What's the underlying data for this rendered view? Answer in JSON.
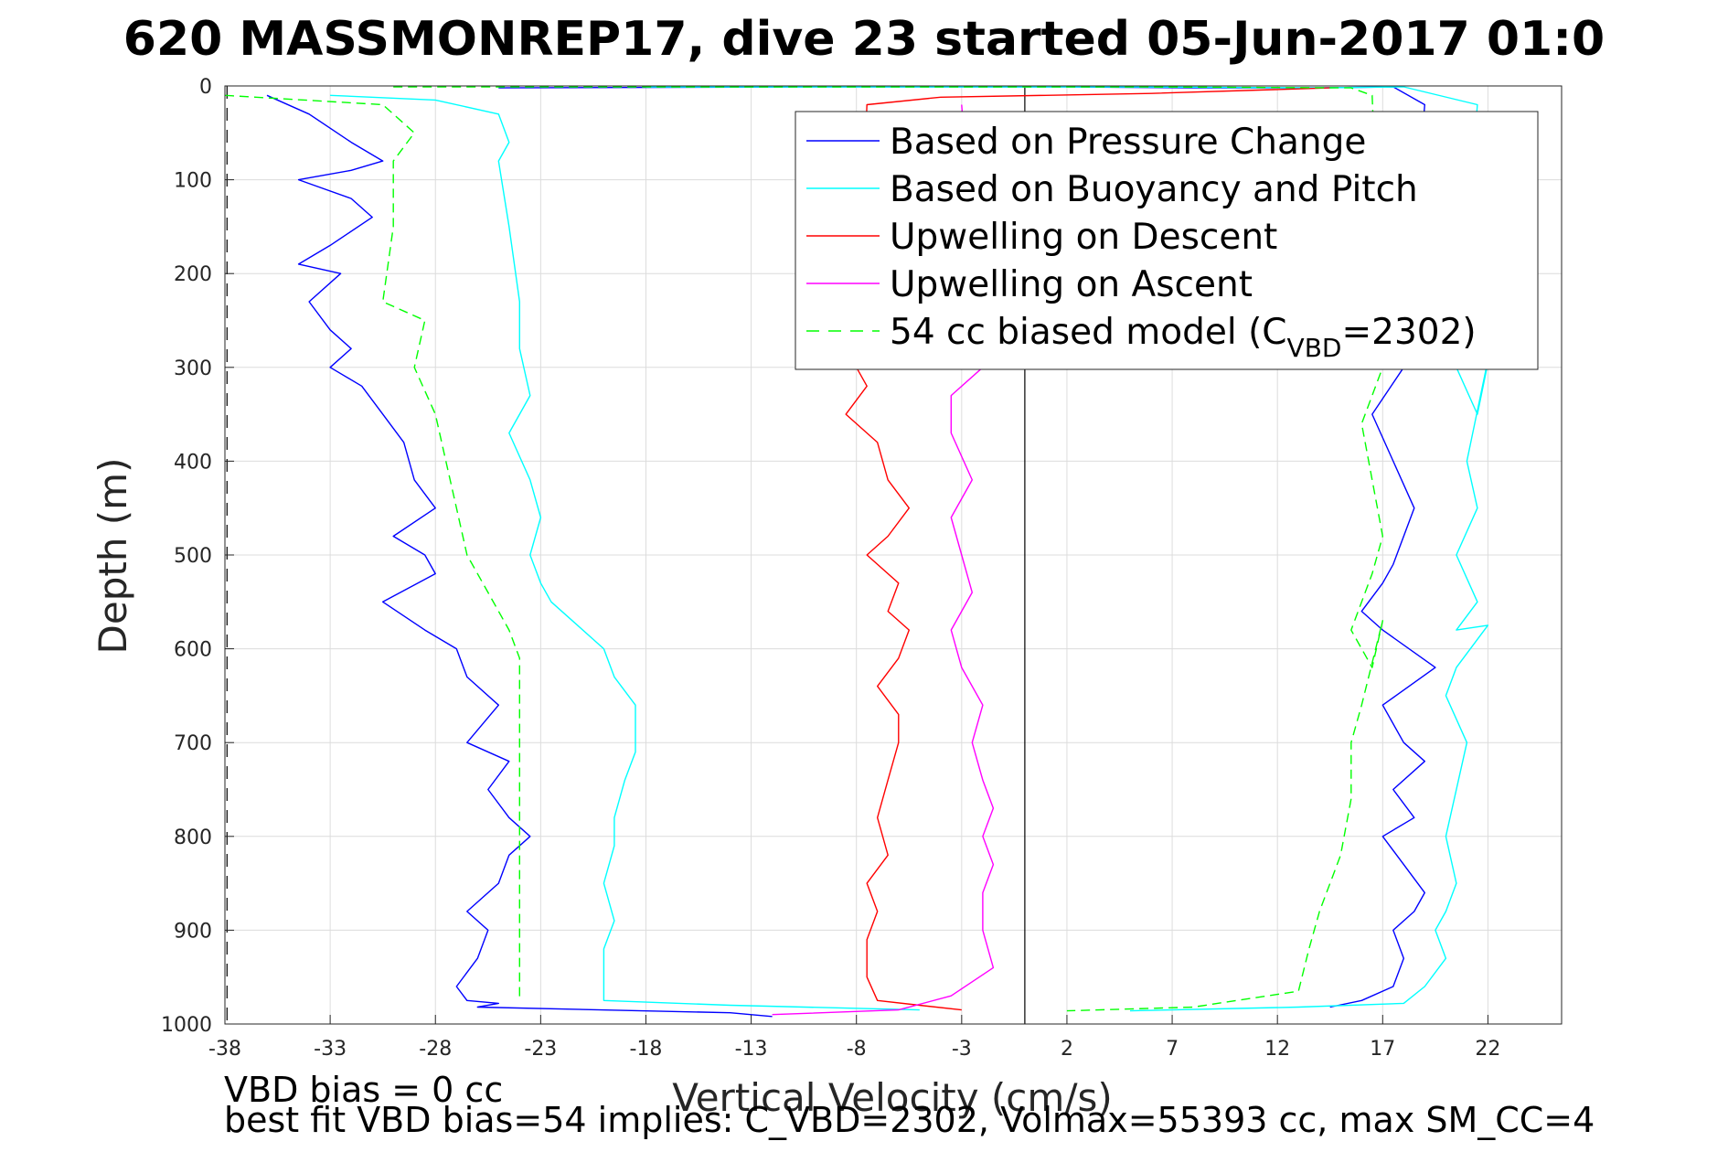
{
  "chart_data": {
    "type": "line",
    "title": "620 MASSMONREP17, dive 23 started 05-Jun-2017 01:0",
    "xlabel": "Vertical Velocity (cm/s)",
    "ylabel": "Depth (m)",
    "xlim": [
      -38,
      25.5
    ],
    "ylim": [
      0,
      1000
    ],
    "y_reversed": true,
    "grid": true,
    "x_ticks": [
      -38,
      -33,
      -28,
      -23,
      -18,
      -13,
      -8,
      -3,
      2,
      7,
      12,
      17,
      22
    ],
    "y_ticks": [
      0,
      100,
      200,
      300,
      400,
      500,
      600,
      700,
      800,
      900,
      1000
    ],
    "legend_position": "top-right",
    "zero_line_x": 0,
    "dashed_line_x": -37.9,
    "series": [
      {
        "name": "Based on Pressure Change",
        "color": "#0000ff",
        "style": "solid",
        "x": [
          -36.0,
          -34.0,
          -32.0,
          -30.5,
          -32.0,
          -34.5,
          -32.0,
          -31.0,
          -33.0,
          -34.5,
          -32.5,
          -34.0,
          -33.0,
          -32.0,
          -33.0,
          -31.5,
          -30.5,
          -29.5,
          -29.0,
          -28.0,
          -30.0,
          -28.5,
          -28.0,
          -30.5,
          -28.5,
          -27.0,
          -26.5,
          -25.0,
          -26.5,
          -24.5,
          -25.5,
          -24.5,
          -23.5,
          -24.5,
          -25.0,
          -26.5,
          -25.5,
          -26.0,
          -27.0,
          -26.5,
          -25.0,
          -26.0,
          -14.0,
          -12.0
        ],
        "y": [
          10,
          30,
          60,
          80,
          90,
          100,
          120,
          140,
          170,
          190,
          200,
          230,
          260,
          280,
          300,
          320,
          350,
          380,
          420,
          450,
          480,
          500,
          520,
          550,
          580,
          600,
          630,
          660,
          700,
          720,
          750,
          780,
          800,
          820,
          850,
          880,
          900,
          930,
          960,
          975,
          978,
          982,
          988,
          992
        ],
        "segments": [
          {
            "x": [
              -25.0,
              -10.0,
              2.0,
              8.0,
              14.0,
              17.5,
              19.0,
              18.0,
              16.5,
              17.5,
              18.5,
              18.0,
              17.5,
              17.0,
              16.0,
              17.0,
              19.5,
              17.0,
              18.0,
              19.0,
              17.5,
              18.5,
              17.0,
              18.0,
              19.0,
              18.5,
              17.5,
              18.0,
              17.5,
              16.0,
              14.5
            ],
            "y": [
              2,
              1,
              1,
              2,
              2,
              1,
              20,
              300,
              350,
              400,
              450,
              480,
              510,
              530,
              560,
              580,
              620,
              660,
              700,
              720,
              750,
              780,
              800,
              830,
              860,
              880,
              900,
              930,
              960,
              975,
              982
            ]
          }
        ]
      },
      {
        "name": "Based on Buoyancy and Pitch",
        "color": "#00ffff",
        "style": "solid",
        "x": [
          -33.0,
          -28.0,
          -25.0,
          -24.5,
          -25.0,
          -24.5,
          -24.0,
          -24.0,
          -23.5,
          -24.5,
          -23.5,
          -23.0,
          -23.5,
          -23.0,
          -22.5,
          -21.5,
          -20.0,
          -19.5,
          -18.5,
          -18.5,
          -19.0,
          -19.5,
          -19.5,
          -20.0,
          -19.5,
          -20.0,
          -20.0,
          -20.0,
          -14.0,
          -5.0
        ],
        "y": [
          10,
          15,
          30,
          60,
          80,
          150,
          230,
          280,
          330,
          370,
          420,
          460,
          500,
          530,
          550,
          570,
          600,
          630,
          660,
          710,
          740,
          780,
          810,
          850,
          890,
          920,
          950,
          975,
          980,
          985
        ],
        "segments": [
          {
            "x": [
              -18.0,
              -5.0,
              5.0,
              14.0,
              18.0,
              21.5,
              20.5,
              21.5,
              23.5,
              21.0,
              21.5,
              20.5,
              21.5,
              20.5,
              22.0,
              20.5,
              20.0,
              21.0,
              20.5,
              20.0,
              20.5,
              20.0,
              19.5,
              20.0,
              19.0,
              18.0,
              13.0,
              5.0
            ],
            "y": [
              1,
              1,
              1,
              2,
              1,
              20,
              300,
              350,
              130,
              400,
              450,
              500,
              550,
              580,
              575,
              620,
              650,
              700,
              750,
              800,
              850,
              880,
              900,
              930,
              960,
              978,
              982,
              986
            ]
          }
        ]
      },
      {
        "name": "Upwelling on Descent",
        "color": "#ff0000",
        "style": "solid",
        "x": [
          14.5,
          6.0,
          -4.0,
          -7.5,
          -8.0,
          -7.5,
          -8.5,
          -7.0,
          -6.5,
          -5.5,
          -6.5,
          -7.5,
          -6.0,
          -6.5,
          -5.5,
          -6.0,
          -7.0,
          -6.0,
          -6.0,
          -6.5,
          -7.0,
          -6.5,
          -7.5,
          -7.0,
          -7.5,
          -7.5,
          -7.0,
          -5.0,
          -3.0
        ],
        "y": [
          2,
          8,
          12,
          20,
          300,
          320,
          350,
          380,
          420,
          450,
          480,
          500,
          530,
          560,
          580,
          610,
          640,
          670,
          700,
          740,
          780,
          820,
          850,
          880,
          910,
          950,
          975,
          980,
          985
        ]
      },
      {
        "name": "Upwelling on Ascent",
        "color": "#ff00ff",
        "style": "solid",
        "x": [
          -3.0,
          -2.0,
          -3.5,
          -3.5,
          -2.5,
          -3.5,
          -3.0,
          -2.5,
          -3.5,
          -3.0,
          -2.0,
          -2.5,
          -2.0,
          -1.5,
          -2.0,
          -1.5,
          -2.0,
          -2.0,
          -1.5,
          -3.5,
          -6.0,
          -12.0
        ],
        "y": [
          20,
          300,
          330,
          370,
          420,
          460,
          500,
          540,
          580,
          620,
          660,
          700,
          740,
          770,
          800,
          830,
          860,
          900,
          940,
          970,
          985,
          990
        ]
      },
      {
        "name": "54 cc biased model (C_VBD=2302)",
        "legend_text": "54 cc biased model (C",
        "legend_sub": "VBD",
        "legend_suffix": "=2302)",
        "color": "#00ff00",
        "style": "dashed",
        "x": [
          -38.0,
          -30.5,
          -29.0,
          -30.0,
          -30.0,
          -30.5,
          -28.5,
          -29.0,
          -28.0,
          -27.5,
          -27.0,
          -26.5,
          -25.5,
          -24.5,
          -24.0,
          -24.0,
          -24.0,
          -24.0,
          -24.0,
          -24.0,
          -24.0
        ],
        "y": [
          10,
          20,
          50,
          80,
          150,
          230,
          250,
          300,
          350,
          400,
          450,
          500,
          540,
          580,
          610,
          650,
          700,
          760,
          820,
          890,
          975
        ],
        "segments": [
          {
            "x": [
              -30.0,
              -10.0,
              5.0,
              15.5,
              16.5,
              17.0,
              16.0,
              16.5,
              17.0,
              16.5,
              15.5,
              16.5,
              17.0,
              16.0,
              15.5,
              15.5,
              15.0,
              14.0,
              13.5,
              13.0,
              8.0,
              2.0
            ],
            "y": [
              1,
              1,
              1,
              2,
              10,
              300,
              360,
              420,
              480,
              520,
              580,
              620,
              570,
              660,
              700,
              760,
              820,
              880,
              920,
              965,
              982,
              986
            ]
          }
        ]
      }
    ],
    "annotations": [
      "VBD bias = 0 cc",
      "best fit VBD bias=54 implies: C_VBD=2302, Volmax=55393 cc, max SM_CC=4"
    ]
  }
}
